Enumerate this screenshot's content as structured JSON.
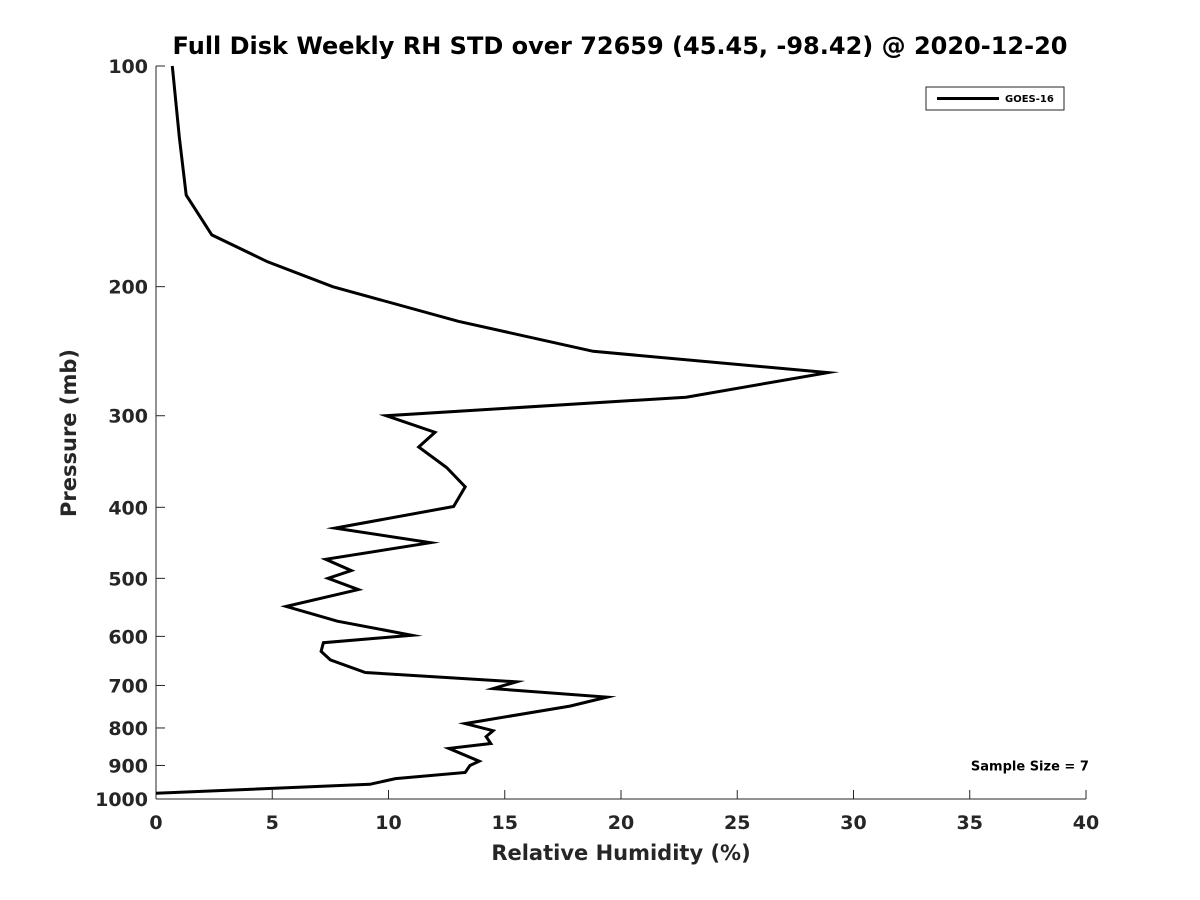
{
  "chart_data": {
    "type": "line",
    "title": "Full Disk Weekly RH STD over 72659 (45.45, -98.42) @ 2020-12-20",
    "xlabel": "Relative Humidity (%)",
    "ylabel": "Pressure (mb)",
    "xlim": [
      0,
      40
    ],
    "ylim": [
      100,
      1000
    ],
    "y_scale": "log",
    "y_reversed": true,
    "x_ticks": [
      0,
      5,
      10,
      15,
      20,
      25,
      30,
      35,
      40
    ],
    "x_tick_labels": [
      "0",
      "5",
      "10",
      "15",
      "20",
      "25",
      "30",
      "35",
      "40"
    ],
    "y_ticks": [
      100,
      200,
      300,
      400,
      500,
      600,
      700,
      800,
      900,
      1000
    ],
    "y_tick_labels": [
      "100",
      "200",
      "300",
      "400",
      "500",
      "600",
      "700",
      "800",
      "900",
      "1000"
    ],
    "grid": false,
    "legend_position": "top-right",
    "series": [
      {
        "name": "GOES-16",
        "color": "#000000",
        "x": [
          0.7,
          1.0,
          1.3,
          2.4,
          4.8,
          7.6,
          13.0,
          18.8,
          28.9,
          22.8,
          9.9,
          12.0,
          11.3,
          12.5,
          13.3,
          12.8,
          7.7,
          11.8,
          7.3,
          8.4,
          7.4,
          8.7,
          5.6,
          7.8,
          11.0,
          7.2,
          7.1,
          7.5,
          9.0,
          15.5,
          14.5,
          19.4,
          17.8,
          13.3,
          14.5,
          14.2,
          14.4,
          12.6,
          13.9,
          13.5,
          13.3,
          10.3,
          9.2,
          0.0
        ],
        "y": [
          100,
          125,
          150,
          170,
          185,
          200,
          223,
          245,
          262,
          283,
          300,
          316,
          331,
          353,
          375,
          399,
          427,
          447,
          471,
          488,
          500,
          518,
          546,
          572,
          598,
          612,
          629,
          646,
          672,
          692,
          707,
          726,
          747,
          789,
          807,
          822,
          840,
          853,
          888,
          900,
          920,
          938,
          955,
          982
        ]
      }
    ],
    "annotations": [
      {
        "text": "Sample Size = 7",
        "x": 35.05,
        "y": 900
      }
    ]
  }
}
